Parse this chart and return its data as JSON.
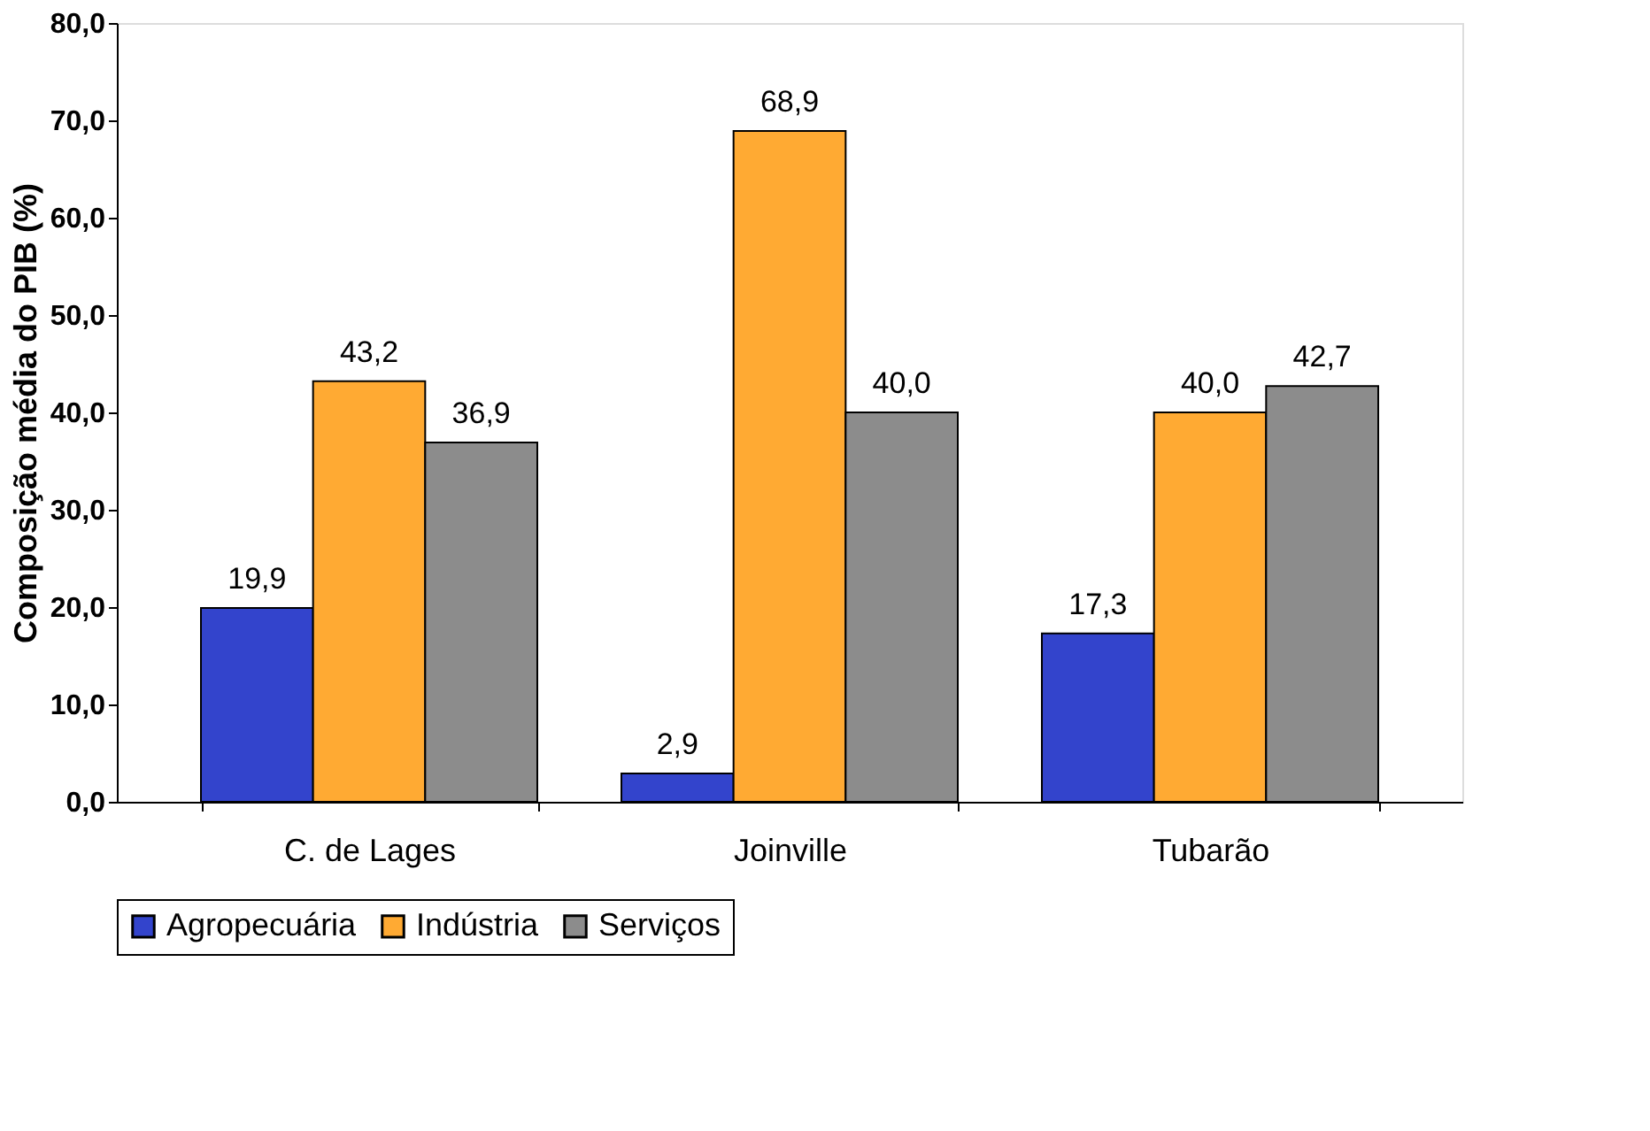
{
  "chart_data": {
    "type": "bar",
    "ylabel": "Composição média do PIB (%)",
    "categories": [
      "C. de Lages",
      "Joinville",
      "Tubarão"
    ],
    "series": [
      {
        "name": "Agropecuária",
        "color": "#3344cc",
        "values": [
          19.9,
          2.9,
          17.3
        ],
        "value_labels": [
          "19,9",
          "2,9",
          "17,3"
        ]
      },
      {
        "name": "Indústria",
        "color": "#ffaa33",
        "values": [
          43.2,
          68.9,
          40.0
        ],
        "value_labels": [
          "43,2",
          "68,9",
          "40,0"
        ]
      },
      {
        "name": "Serviços",
        "color": "#8c8c8c",
        "values": [
          36.9,
          40.0,
          42.7
        ],
        "value_labels": [
          "36,9",
          "40,0",
          "42,7"
        ]
      }
    ],
    "ylim": [
      0,
      80
    ],
    "yticks": [
      {
        "value": 0,
        "label": "0,0"
      },
      {
        "value": 10,
        "label": "10,0"
      },
      {
        "value": 20,
        "label": "20,0"
      },
      {
        "value": 30,
        "label": "30,0"
      },
      {
        "value": 40,
        "label": "40,0"
      },
      {
        "value": 50,
        "label": "50,0"
      },
      {
        "value": 60,
        "label": "60,0"
      },
      {
        "value": 70,
        "label": "70,0"
      },
      {
        "value": 80,
        "label": "80,0"
      }
    ],
    "grid": false,
    "legend": "bottom"
  }
}
